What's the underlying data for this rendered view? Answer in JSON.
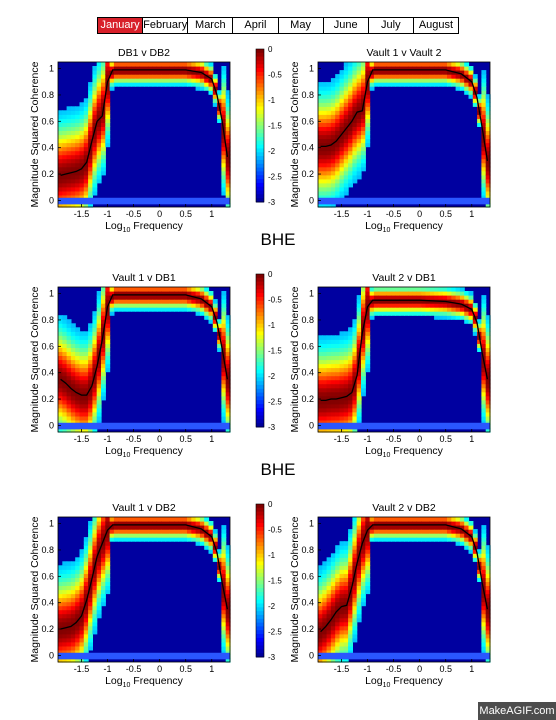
{
  "timeline": {
    "months": [
      "January",
      "February",
      "March",
      "April",
      "May",
      "June",
      "July",
      "August"
    ],
    "active": "January"
  },
  "section_labels": [
    "BHE",
    "BHE"
  ],
  "watermark": "MakeAGIF.com",
  "colorbar": {
    "ticks": [
      "0",
      "-0.5",
      "-1",
      "-1.5",
      "-2",
      "-2.5",
      "-3"
    ]
  },
  "chart_data": [
    {
      "type": "heatmap",
      "title": "DB1 v DB2",
      "xlabel": "Log10 Frequency",
      "ylabel": "Magnitude Squared Coherence",
      "xticks": [
        "-1.5",
        "-1",
        "-0.5",
        "0",
        "0.5",
        "1"
      ],
      "yticks": [
        "0",
        "0.2",
        "0.4",
        "0.6",
        "0.8",
        "1"
      ],
      "xlim": [
        -1.95,
        1.35
      ],
      "ylim": [
        -0.05,
        1.05
      ],
      "colorbar_range": [
        -3,
        0
      ],
      "series": [
        {
          "x": [
            -1.9,
            -1.8,
            -1.7,
            -1.6,
            -1.5,
            -1.4,
            -1.3,
            -1.2,
            -1.1,
            -1.0,
            -0.9,
            -0.5,
            0,
            0.5,
            0.8,
            1.0,
            1.1,
            1.2,
            1.3
          ],
          "y": [
            0.19,
            0.2,
            0.21,
            0.22,
            0.24,
            0.29,
            0.45,
            0.6,
            0.64,
            0.9,
            0.99,
            0.99,
            0.99,
            0.99,
            0.97,
            0.92,
            0.8,
            0.6,
            0.33
          ]
        }
      ]
    },
    {
      "type": "heatmap",
      "title": "Vault 1 v Vault 2",
      "xlabel": "Log10 Frequency",
      "ylabel": "Magnitude Squared Coherence",
      "xticks": [
        "-1.5",
        "-1",
        "-0.5",
        "0",
        "0.5",
        "1"
      ],
      "yticks": [
        "0",
        "0.2",
        "0.4",
        "0.6",
        "0.8",
        "1"
      ],
      "xlim": [
        -1.95,
        1.35
      ],
      "ylim": [
        -0.05,
        1.05
      ],
      "colorbar_range": [
        -3,
        0
      ],
      "series": [
        {
          "x": [
            -1.9,
            -1.8,
            -1.7,
            -1.6,
            -1.5,
            -1.4,
            -1.3,
            -1.2,
            -1.1,
            -1.0,
            -0.9,
            -0.5,
            0,
            0.5,
            0.8,
            1.0,
            1.1,
            1.2,
            1.3
          ],
          "y": [
            0.41,
            0.41,
            0.42,
            0.45,
            0.5,
            0.55,
            0.6,
            0.67,
            0.68,
            0.9,
            0.99,
            0.99,
            0.99,
            0.99,
            0.96,
            0.9,
            0.78,
            0.55,
            0.3
          ]
        }
      ]
    },
    {
      "type": "heatmap",
      "title": "Vault 1 v DB1",
      "xlabel": "Log10 Frequency",
      "ylabel": "Magnitude Squared Coherence",
      "xticks": [
        "-1.5",
        "-1",
        "-0.5",
        "0",
        "0.5",
        "1"
      ],
      "yticks": [
        "0",
        "0.2",
        "0.4",
        "0.6",
        "0.8",
        "1"
      ],
      "xlim": [
        -1.95,
        1.35
      ],
      "ylim": [
        -0.05,
        1.05
      ],
      "colorbar_range": [
        -3,
        0
      ],
      "series": [
        {
          "x": [
            -1.9,
            -1.8,
            -1.7,
            -1.6,
            -1.5,
            -1.4,
            -1.3,
            -1.2,
            -1.1,
            -1.0,
            -0.9,
            -0.5,
            0,
            0.5,
            0.8,
            1.0,
            1.1,
            1.2,
            1.3
          ],
          "y": [
            0.35,
            0.32,
            0.28,
            0.25,
            0.23,
            0.23,
            0.3,
            0.45,
            0.65,
            0.9,
            0.99,
            0.99,
            0.99,
            0.99,
            0.96,
            0.9,
            0.78,
            0.58,
            0.35
          ]
        }
      ]
    },
    {
      "type": "heatmap",
      "title": "Vault 2 v DB1",
      "xlabel": "Log10 Frequency",
      "ylabel": "Magnitude Squared Coherence",
      "xticks": [
        "-1.5",
        "-1",
        "-0.5",
        "0",
        "0.5",
        "1"
      ],
      "yticks": [
        "0",
        "0.2",
        "0.4",
        "0.6",
        "0.8",
        "1"
      ],
      "xlim": [
        -1.95,
        1.35
      ],
      "ylim": [
        -0.05,
        1.05
      ],
      "colorbar_range": [
        -3,
        0
      ],
      "series": [
        {
          "x": [
            -1.9,
            -1.8,
            -1.7,
            -1.6,
            -1.5,
            -1.4,
            -1.3,
            -1.2,
            -1.1,
            -1.0,
            -0.9,
            -0.5,
            0,
            0.5,
            0.8,
            1.0,
            1.1,
            1.2,
            1.3
          ],
          "y": [
            0.19,
            0.19,
            0.2,
            0.2,
            0.21,
            0.22,
            0.25,
            0.38,
            0.7,
            0.9,
            0.95,
            0.95,
            0.95,
            0.94,
            0.92,
            0.88,
            0.78,
            0.55,
            0.35
          ]
        }
      ]
    },
    {
      "type": "heatmap",
      "title": "Vault 1 v DB2",
      "xlabel": "Log10 Frequency",
      "ylabel": "Magnitude Squared Coherence",
      "xticks": [
        "-1.5",
        "-1",
        "-0.5",
        "0",
        "0.5",
        "1"
      ],
      "yticks": [
        "0",
        "0.2",
        "0.4",
        "0.6",
        "0.8",
        "1"
      ],
      "xlim": [
        -1.95,
        1.35
      ],
      "ylim": [
        -0.05,
        1.05
      ],
      "colorbar_range": [
        -3,
        0
      ],
      "series": [
        {
          "x": [
            -1.9,
            -1.8,
            -1.7,
            -1.6,
            -1.5,
            -1.4,
            -1.3,
            -1.2,
            -1.1,
            -1.0,
            -0.9,
            -0.5,
            0,
            0.5,
            0.8,
            1.0,
            1.1,
            1.2,
            1.3
          ],
          "y": [
            0.2,
            0.21,
            0.22,
            0.25,
            0.3,
            0.42,
            0.58,
            0.75,
            0.85,
            0.95,
            0.99,
            0.99,
            0.99,
            0.99,
            0.96,
            0.9,
            0.78,
            0.55,
            0.35
          ]
        }
      ]
    },
    {
      "type": "heatmap",
      "title": "Vault 2 v DB2",
      "xlabel": "Log10 Frequency",
      "ylabel": "Magnitude Squared Coherence",
      "xticks": [
        "-1.5",
        "-1",
        "-0.5",
        "0",
        "0.5",
        "1"
      ],
      "yticks": [
        "0",
        "0.2",
        "0.4",
        "0.6",
        "0.8",
        "1"
      ],
      "xlim": [
        -1.95,
        1.35
      ],
      "ylim": [
        -0.05,
        1.05
      ],
      "colorbar_range": [
        -3,
        0
      ],
      "series": [
        {
          "x": [
            -1.9,
            -1.8,
            -1.7,
            -1.6,
            -1.5,
            -1.4,
            -1.3,
            -1.2,
            -1.1,
            -1.0,
            -0.9,
            -0.5,
            0,
            0.5,
            0.8,
            1.0,
            1.1,
            1.2,
            1.3
          ],
          "y": [
            0.18,
            0.22,
            0.27,
            0.33,
            0.37,
            0.38,
            0.52,
            0.7,
            0.85,
            0.95,
            0.99,
            0.99,
            0.99,
            0.99,
            0.96,
            0.9,
            0.78,
            0.55,
            0.35
          ]
        }
      ]
    }
  ]
}
